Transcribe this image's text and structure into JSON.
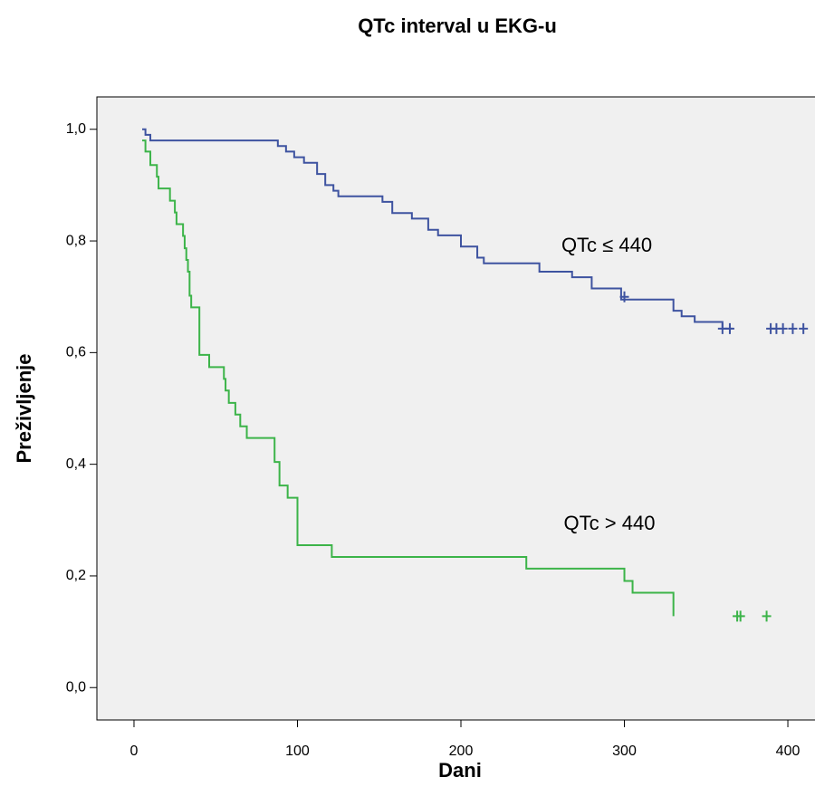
{
  "chart_data": {
    "type": "survival",
    "title": "QTc interval u EKG-u",
    "x_label": "Dani",
    "y_label": "Preživljenje",
    "xlim": [
      -22.7,
      416.6
    ],
    "ylim": [
      -0.058,
      1.058
    ],
    "xticks": [
      0,
      100,
      200,
      300,
      400
    ],
    "yticks": [
      {
        "value": 0,
        "label": "0,0"
      },
      {
        "value": 0.2,
        "label": "0,2"
      },
      {
        "value": 0.4,
        "label": "0,4"
      },
      {
        "value": 0.6,
        "label": "0,6"
      },
      {
        "value": 0.8,
        "label": "0,8"
      },
      {
        "value": 1,
        "label": "1,0"
      }
    ],
    "series": [
      {
        "name": "QTc ≤ 440",
        "color": "#3e53a0",
        "x": [
          5,
          7,
          10,
          88,
          93,
          98,
          104,
          112,
          117,
          122,
          125,
          152,
          158,
          170,
          180,
          186,
          200,
          210,
          214,
          248,
          268,
          280,
          298,
          330,
          335,
          343,
          360,
          366
        ],
        "values": [
          1.0,
          0.99,
          0.98,
          0.97,
          0.96,
          0.95,
          0.94,
          0.92,
          0.9,
          0.89,
          0.88,
          0.87,
          0.85,
          0.84,
          0.82,
          0.81,
          0.79,
          0.77,
          0.76,
          0.745,
          0.735,
          0.715,
          0.695,
          0.675,
          0.665,
          0.655,
          0.643,
          0.643
        ],
        "censored": {
          "x": [
            300,
            360,
            364.5,
            389.5,
            393,
            397,
            403,
            409.5
          ],
          "values": [
            0.7,
            0.643,
            0.643,
            0.643,
            0.643,
            0.643,
            0.643,
            0.643
          ]
        }
      },
      {
        "name": "QTc > 440",
        "color": "#3cb449",
        "x": [
          5,
          7,
          10,
          14,
          15,
          22,
          25,
          26,
          30,
          31,
          32,
          33,
          34,
          35,
          40,
          46,
          55,
          56,
          58,
          62,
          65,
          69,
          86,
          89,
          94,
          100,
          121,
          240,
          300,
          305,
          330
        ],
        "values": [
          0.98,
          0.96,
          0.936,
          0.915,
          0.894,
          0.872,
          0.851,
          0.83,
          0.809,
          0.787,
          0.766,
          0.745,
          0.702,
          0.681,
          0.596,
          0.574,
          0.553,
          0.532,
          0.51,
          0.489,
          0.468,
          0.447,
          0.404,
          0.362,
          0.34,
          0.255,
          0.234,
          0.213,
          0.191,
          0.17,
          0.128
        ],
        "censored": {
          "x": [
            369,
            371,
            387
          ],
          "values": [
            0.128,
            0.128,
            0.128
          ]
        }
      }
    ]
  }
}
